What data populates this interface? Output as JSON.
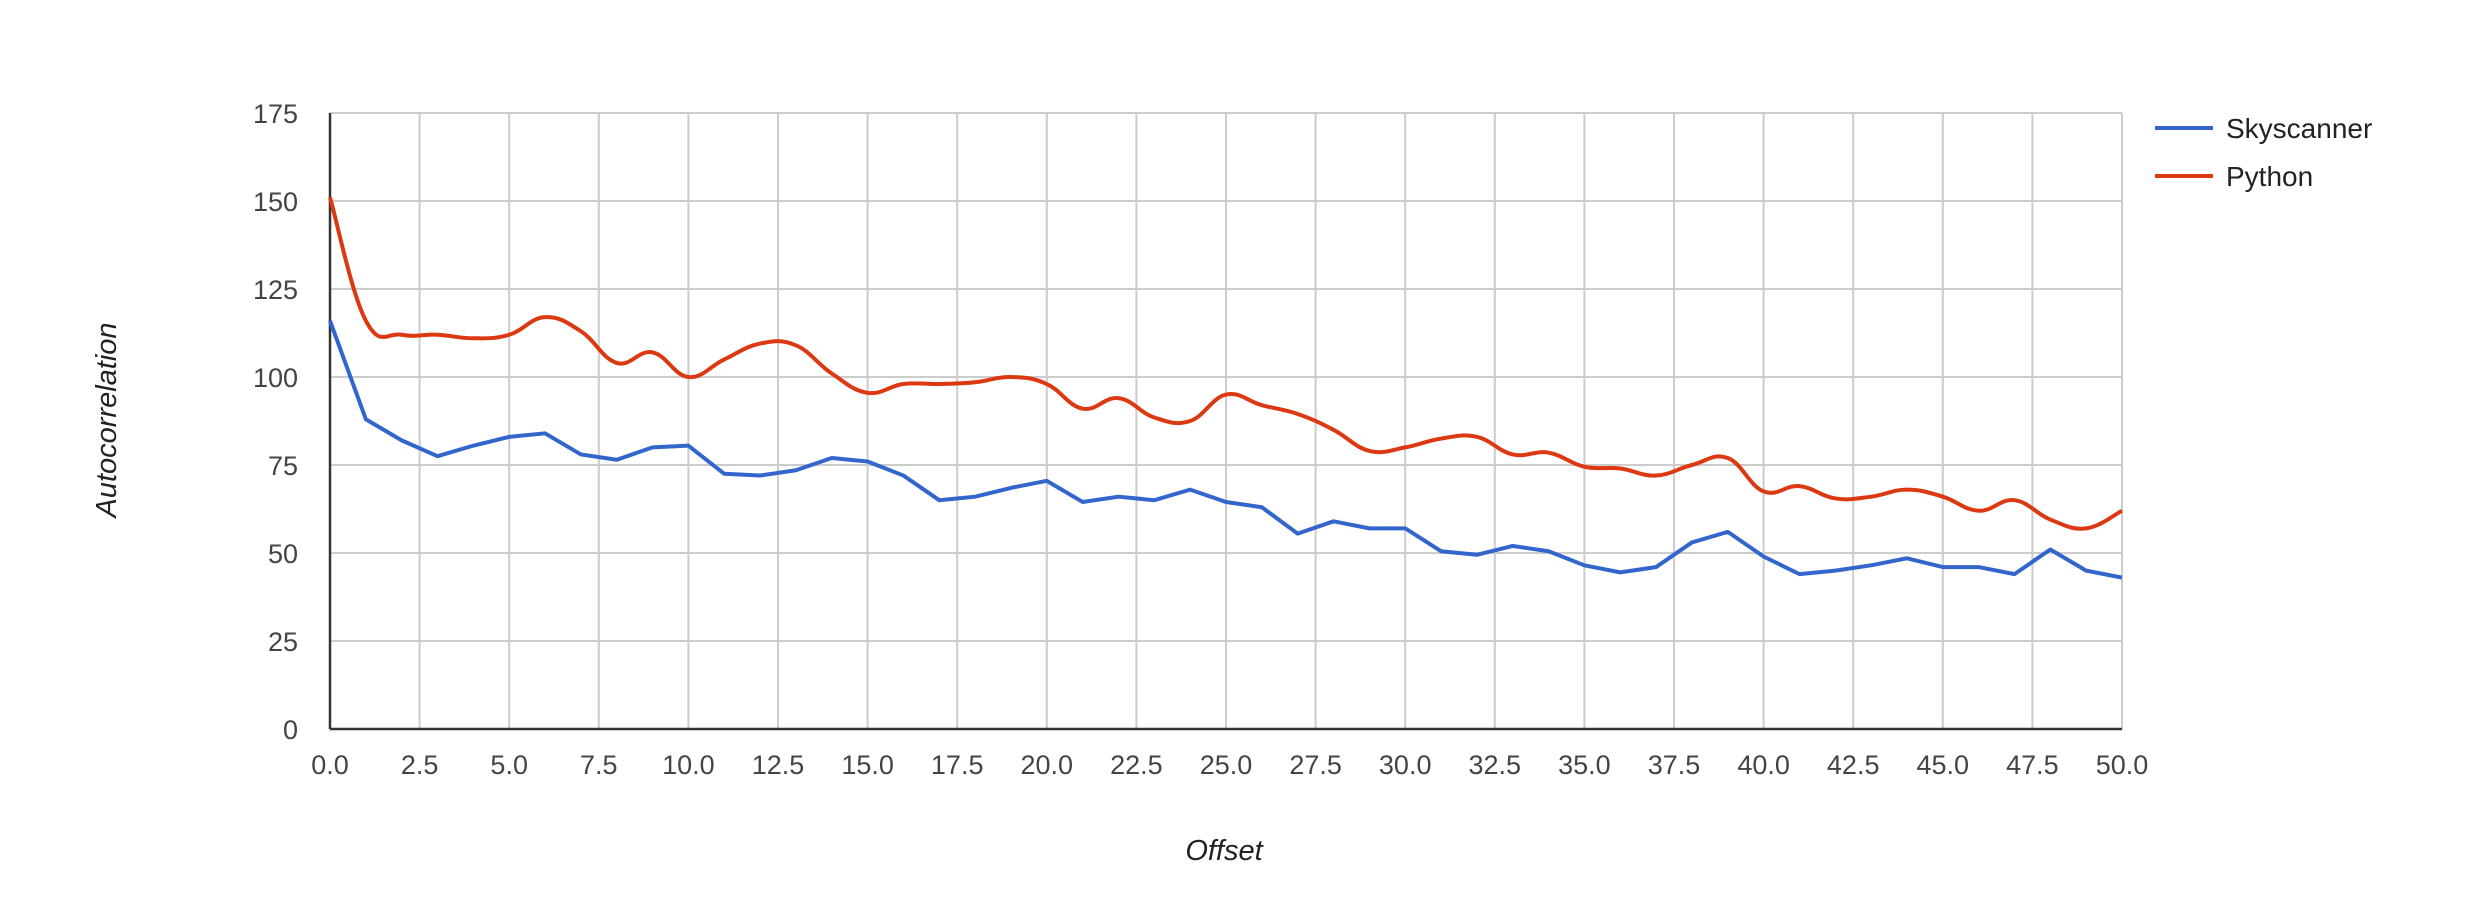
{
  "chart_data": {
    "type": "line",
    "title": "",
    "xlabel": "Offset",
    "ylabel": "Autocorrelation",
    "xlim": [
      0,
      50
    ],
    "ylim": [
      0,
      175
    ],
    "x_ticks": [
      "0.0",
      "2.5",
      "5.0",
      "7.5",
      "10.0",
      "12.5",
      "15.0",
      "17.5",
      "20.0",
      "22.5",
      "25.0",
      "27.5",
      "30.0",
      "32.5",
      "35.0",
      "37.5",
      "40.0",
      "42.5",
      "45.0",
      "47.5",
      "50.0"
    ],
    "y_ticks": [
      "0",
      "25",
      "50",
      "75",
      "100",
      "125",
      "150",
      "175"
    ],
    "grid": true,
    "legend_position": "right-top",
    "x": [
      0,
      1,
      2,
      3,
      4,
      5,
      6,
      7,
      8,
      9,
      10,
      11,
      12,
      13,
      14,
      15,
      16,
      17,
      18,
      19,
      20,
      21,
      22,
      23,
      24,
      25,
      26,
      27,
      28,
      29,
      30,
      31,
      32,
      33,
      34,
      35,
      36,
      37,
      38,
      39,
      40,
      41,
      42,
      43,
      44,
      45,
      46,
      47,
      48,
      49,
      50
    ],
    "series": [
      {
        "name": "Skyscanner",
        "color": "#3366cc",
        "smooth": false,
        "values": [
          116,
          88,
          82,
          77.5,
          80.5,
          83,
          84,
          78,
          76.5,
          80,
          80.5,
          72.5,
          72,
          73.5,
          77,
          76,
          72,
          65,
          66,
          68.5,
          70.5,
          64.5,
          66,
          65,
          68,
          64.5,
          63,
          55.5,
          59,
          57,
          57,
          50.5,
          49.5,
          52,
          50.5,
          46.5,
          44.5,
          46,
          53,
          56,
          49,
          44,
          45,
          46.5,
          48.5,
          46,
          46,
          44,
          51,
          45,
          43
        ]
      },
      {
        "name": "Python",
        "color": "#dc3912",
        "smooth": true,
        "values": [
          151,
          116,
          112,
          112,
          111,
          112,
          117,
          113,
          104,
          107,
          100,
          105,
          109.5,
          109,
          101,
          95.5,
          98,
          98,
          98.5,
          100,
          98,
          91,
          94,
          88.5,
          87.5,
          95,
          92,
          89.5,
          85,
          79,
          80,
          82.5,
          83,
          78,
          78.5,
          74.5,
          74,
          72,
          75,
          77,
          67.5,
          69,
          65.5,
          66,
          68,
          66,
          62,
          65,
          59.5,
          57,
          62
        ]
      }
    ]
  }
}
